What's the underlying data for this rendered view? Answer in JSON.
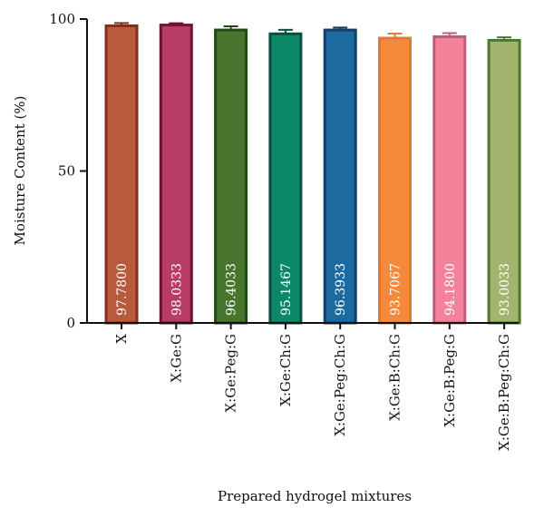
{
  "chart_data": {
    "type": "bar",
    "xlabel": "Prepared hydrogel mixtures",
    "ylabel": "Moisture Content (%)",
    "ylim": [
      0,
      100
    ],
    "yticks": [
      0,
      50,
      100
    ],
    "grid": false,
    "categories": [
      "X",
      "X:Ge:G",
      "X:Ge:Peg:G",
      "X:Ge:Ch:G",
      "X:Ge:Peg:Ch:G",
      "X:Ge:B:Ch:G",
      "X:Ge:B:Peg:G",
      "X:Ge:B:Peg:Ch:G"
    ],
    "values": [
      97.78,
      98.0333,
      96.4033,
      95.1467,
      96.3933,
      93.7067,
      94.18,
      93.0033
    ],
    "value_labels": [
      "97.7800",
      "98.0333",
      "96.4033",
      "95.1467",
      "96.3933",
      "93.7067",
      "94.1800",
      "93.0033"
    ],
    "errors": [
      0.9,
      0.6,
      1.2,
      1.3,
      0.8,
      1.5,
      1.2,
      1.0
    ],
    "fill_colors": [
      "#b85a3c",
      "#b83c64",
      "#48752e",
      "#0b8868",
      "#1d6aa0",
      "#f58a3c",
      "#f4829a",
      "#a2b46e"
    ],
    "edge_colors": [
      "#8a2a1a",
      "#6e1236",
      "#1f4a12",
      "#0b4f3f",
      "#143e68",
      "#e07838",
      "#c05a78",
      "#4a7a28"
    ]
  }
}
